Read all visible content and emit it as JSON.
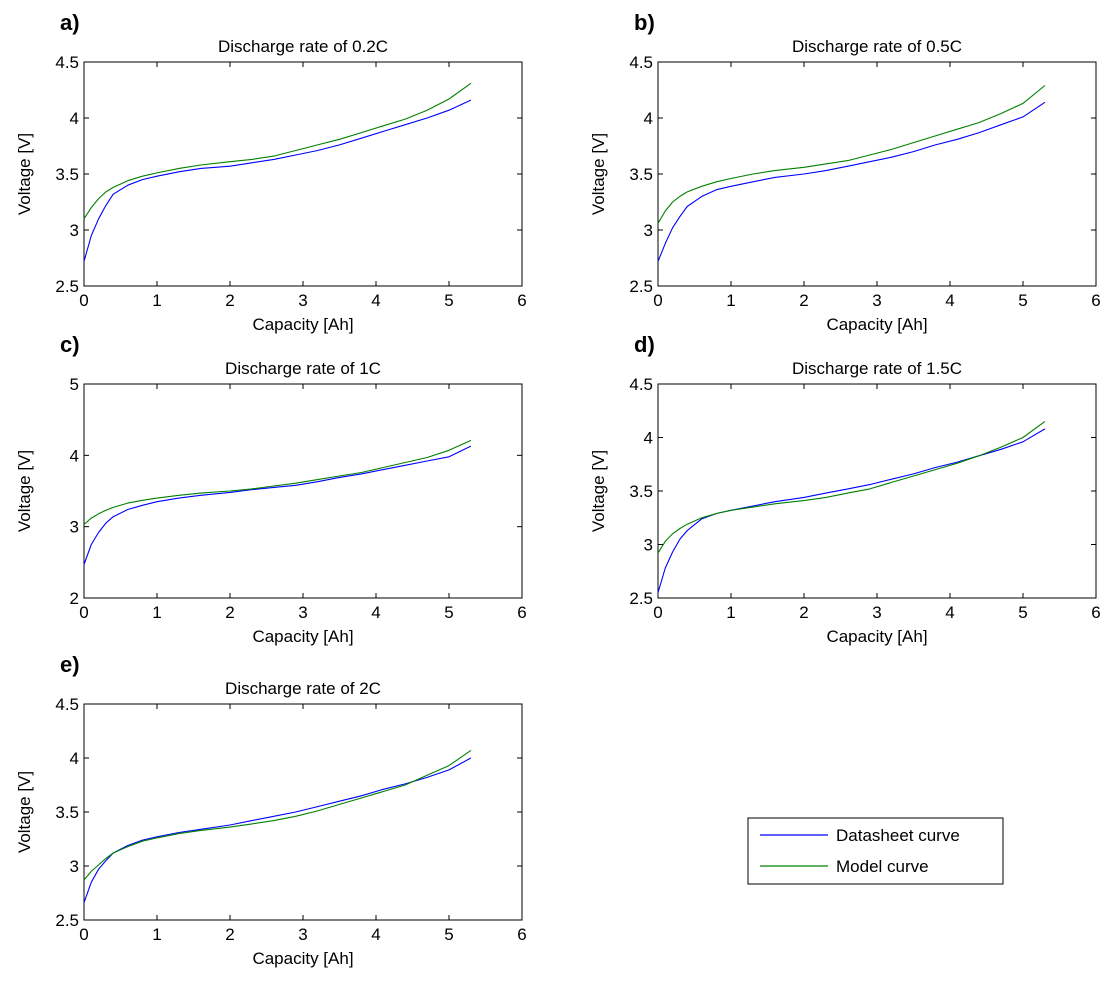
{
  "chart_data": [
    {
      "panel": "a)",
      "type": "line",
      "title": "Discharge rate of 0.2C",
      "xlabel": "Capacity [Ah]",
      "ylabel": "Voltage [V]",
      "xlim": [
        0,
        6
      ],
      "ylim": [
        2.5,
        4.5
      ],
      "xticks": [
        "0",
        "1",
        "2",
        "3",
        "4",
        "5",
        "6"
      ],
      "yticks": [
        "2.5",
        "3",
        "3.5",
        "4",
        "4.5"
      ],
      "series": [
        {
          "name": "Datasheet curve",
          "color": "#0000ff",
          "x": [
            0,
            0.1,
            0.2,
            0.3,
            0.4,
            0.6,
            0.8,
            1.0,
            1.3,
            1.6,
            2.0,
            2.3,
            2.6,
            2.9,
            3.2,
            3.5,
            3.8,
            4.1,
            4.4,
            4.7,
            5.0,
            5.3
          ],
          "y": [
            2.72,
            2.95,
            3.1,
            3.22,
            3.32,
            3.4,
            3.45,
            3.48,
            3.52,
            3.55,
            3.57,
            3.6,
            3.63,
            3.67,
            3.71,
            3.76,
            3.82,
            3.88,
            3.94,
            4.0,
            4.07,
            4.16
          ]
        },
        {
          "name": "Model curve",
          "color": "#008000",
          "x": [
            0,
            0.1,
            0.2,
            0.3,
            0.4,
            0.6,
            0.8,
            1.0,
            1.3,
            1.6,
            2.0,
            2.3,
            2.6,
            2.9,
            3.2,
            3.5,
            3.8,
            4.1,
            4.4,
            4.7,
            5.0,
            5.3
          ],
          "y": [
            3.1,
            3.2,
            3.28,
            3.34,
            3.38,
            3.44,
            3.48,
            3.51,
            3.55,
            3.58,
            3.61,
            3.63,
            3.66,
            3.71,
            3.76,
            3.81,
            3.87,
            3.93,
            3.99,
            4.07,
            4.17,
            4.31
          ]
        }
      ]
    },
    {
      "panel": "b)",
      "type": "line",
      "title": "Discharge rate of 0.5C",
      "xlabel": "Capacity [Ah]",
      "ylabel": "Voltage [V]",
      "xlim": [
        0,
        6
      ],
      "ylim": [
        2.5,
        4.5
      ],
      "xticks": [
        "0",
        "1",
        "2",
        "3",
        "4",
        "5",
        "6"
      ],
      "yticks": [
        "2.5",
        "3",
        "3.5",
        "4",
        "4.5"
      ],
      "series": [
        {
          "name": "Datasheet curve",
          "color": "#0000ff",
          "x": [
            0,
            0.1,
            0.2,
            0.3,
            0.4,
            0.6,
            0.8,
            1.0,
            1.3,
            1.6,
            2.0,
            2.3,
            2.6,
            2.9,
            3.2,
            3.5,
            3.8,
            4.1,
            4.4,
            4.7,
            5.0,
            5.3
          ],
          "y": [
            2.72,
            2.88,
            3.02,
            3.12,
            3.21,
            3.3,
            3.36,
            3.39,
            3.43,
            3.47,
            3.5,
            3.53,
            3.57,
            3.61,
            3.65,
            3.7,
            3.76,
            3.81,
            3.87,
            3.94,
            4.01,
            4.14
          ]
        },
        {
          "name": "Model curve",
          "color": "#008000",
          "x": [
            0,
            0.1,
            0.2,
            0.3,
            0.4,
            0.6,
            0.8,
            1.0,
            1.3,
            1.6,
            2.0,
            2.3,
            2.6,
            2.9,
            3.2,
            3.5,
            3.8,
            4.1,
            4.4,
            4.7,
            5.0,
            5.3
          ],
          "y": [
            3.06,
            3.17,
            3.25,
            3.3,
            3.34,
            3.39,
            3.43,
            3.46,
            3.5,
            3.53,
            3.56,
            3.59,
            3.62,
            3.67,
            3.72,
            3.78,
            3.84,
            3.9,
            3.96,
            4.04,
            4.13,
            4.29
          ]
        }
      ]
    },
    {
      "panel": "c)",
      "type": "line",
      "title": "Discharge rate of 1C",
      "xlabel": "Capacity [Ah]",
      "ylabel": "Voltage [V]",
      "xlim": [
        0,
        6
      ],
      "ylim": [
        2,
        5
      ],
      "xticks": [
        "0",
        "1",
        "2",
        "3",
        "4",
        "5",
        "6"
      ],
      "yticks": [
        "2",
        "3",
        "4",
        "5"
      ],
      "series": [
        {
          "name": "Datasheet curve",
          "color": "#0000ff",
          "x": [
            0,
            0.1,
            0.2,
            0.3,
            0.4,
            0.6,
            0.8,
            1.0,
            1.3,
            1.6,
            2.0,
            2.3,
            2.6,
            2.9,
            3.2,
            3.5,
            3.8,
            4.1,
            4.4,
            4.7,
            5.0,
            5.3
          ],
          "y": [
            2.47,
            2.75,
            2.92,
            3.05,
            3.14,
            3.24,
            3.3,
            3.35,
            3.4,
            3.44,
            3.48,
            3.52,
            3.55,
            3.58,
            3.63,
            3.69,
            3.74,
            3.8,
            3.86,
            3.92,
            3.98,
            4.13
          ]
        },
        {
          "name": "Model curve",
          "color": "#008000",
          "x": [
            0,
            0.1,
            0.2,
            0.3,
            0.4,
            0.6,
            0.8,
            1.0,
            1.3,
            1.6,
            2.0,
            2.3,
            2.6,
            2.9,
            3.2,
            3.5,
            3.8,
            4.1,
            4.4,
            4.7,
            5.0,
            5.3
          ],
          "y": [
            3.03,
            3.12,
            3.18,
            3.23,
            3.27,
            3.33,
            3.37,
            3.4,
            3.44,
            3.47,
            3.5,
            3.53,
            3.57,
            3.61,
            3.66,
            3.71,
            3.76,
            3.83,
            3.9,
            3.97,
            4.07,
            4.21
          ]
        }
      ]
    },
    {
      "panel": "d)",
      "type": "line",
      "title": "Discharge rate of 1.5C",
      "xlabel": "Capacity [Ah]",
      "ylabel": "Voltage [V]",
      "xlim": [
        0,
        6
      ],
      "ylim": [
        2.5,
        4.5
      ],
      "xticks": [
        "0",
        "1",
        "2",
        "3",
        "4",
        "5",
        "6"
      ],
      "yticks": [
        "2.5",
        "3",
        "3.5",
        "4",
        "4.5"
      ],
      "series": [
        {
          "name": "Datasheet curve",
          "color": "#0000ff",
          "x": [
            0,
            0.1,
            0.2,
            0.3,
            0.4,
            0.6,
            0.8,
            1.0,
            1.3,
            1.6,
            2.0,
            2.3,
            2.6,
            2.9,
            3.2,
            3.5,
            3.8,
            4.1,
            4.4,
            4.7,
            5.0,
            5.3
          ],
          "y": [
            2.55,
            2.78,
            2.93,
            3.05,
            3.13,
            3.24,
            3.29,
            3.32,
            3.36,
            3.4,
            3.44,
            3.48,
            3.52,
            3.56,
            3.61,
            3.66,
            3.72,
            3.77,
            3.83,
            3.89,
            3.96,
            4.08
          ]
        },
        {
          "name": "Model curve",
          "color": "#008000",
          "x": [
            0,
            0.1,
            0.2,
            0.3,
            0.4,
            0.6,
            0.8,
            1.0,
            1.3,
            1.6,
            2.0,
            2.3,
            2.6,
            2.9,
            3.2,
            3.5,
            3.8,
            4.1,
            4.4,
            4.7,
            5.0,
            5.3
          ],
          "y": [
            2.92,
            3.03,
            3.1,
            3.15,
            3.19,
            3.25,
            3.29,
            3.32,
            3.35,
            3.38,
            3.41,
            3.44,
            3.48,
            3.52,
            3.58,
            3.64,
            3.7,
            3.76,
            3.83,
            3.91,
            4.0,
            4.15
          ]
        }
      ]
    },
    {
      "panel": "e)",
      "type": "line",
      "title": "Discharge rate of 2C",
      "xlabel": "Capacity [Ah]",
      "ylabel": "Voltage [V]",
      "xlim": [
        0,
        6
      ],
      "ylim": [
        2.5,
        4.5
      ],
      "xticks": [
        "0",
        "1",
        "2",
        "3",
        "4",
        "5",
        "6"
      ],
      "yticks": [
        "2.5",
        "3",
        "3.5",
        "4",
        "4.5"
      ],
      "series": [
        {
          "name": "Datasheet curve",
          "color": "#0000ff",
          "x": [
            0,
            0.1,
            0.2,
            0.3,
            0.4,
            0.6,
            0.8,
            1.0,
            1.3,
            1.6,
            2.0,
            2.3,
            2.6,
            2.9,
            3.2,
            3.5,
            3.8,
            4.1,
            4.4,
            4.7,
            5.0,
            5.3
          ],
          "y": [
            2.66,
            2.85,
            2.97,
            3.05,
            3.12,
            3.19,
            3.24,
            3.27,
            3.31,
            3.34,
            3.38,
            3.42,
            3.46,
            3.5,
            3.55,
            3.6,
            3.65,
            3.71,
            3.76,
            3.82,
            3.89,
            4.0
          ]
        },
        {
          "name": "Model curve",
          "color": "#008000",
          "x": [
            0,
            0.1,
            0.2,
            0.3,
            0.4,
            0.6,
            0.8,
            1.0,
            1.3,
            1.6,
            2.0,
            2.3,
            2.6,
            2.9,
            3.2,
            3.5,
            3.8,
            4.1,
            4.4,
            4.7,
            5.0,
            5.3
          ],
          "y": [
            2.87,
            2.95,
            3.01,
            3.07,
            3.12,
            3.18,
            3.23,
            3.26,
            3.3,
            3.33,
            3.36,
            3.39,
            3.42,
            3.46,
            3.51,
            3.57,
            3.63,
            3.69,
            3.75,
            3.84,
            3.93,
            4.07
          ]
        }
      ]
    }
  ],
  "legend": {
    "position": "lower-right empty cell",
    "entries": [
      {
        "label": "Datasheet curve",
        "color": "#0000ff"
      },
      {
        "label": "Model curve",
        "color": "#008000"
      }
    ]
  }
}
